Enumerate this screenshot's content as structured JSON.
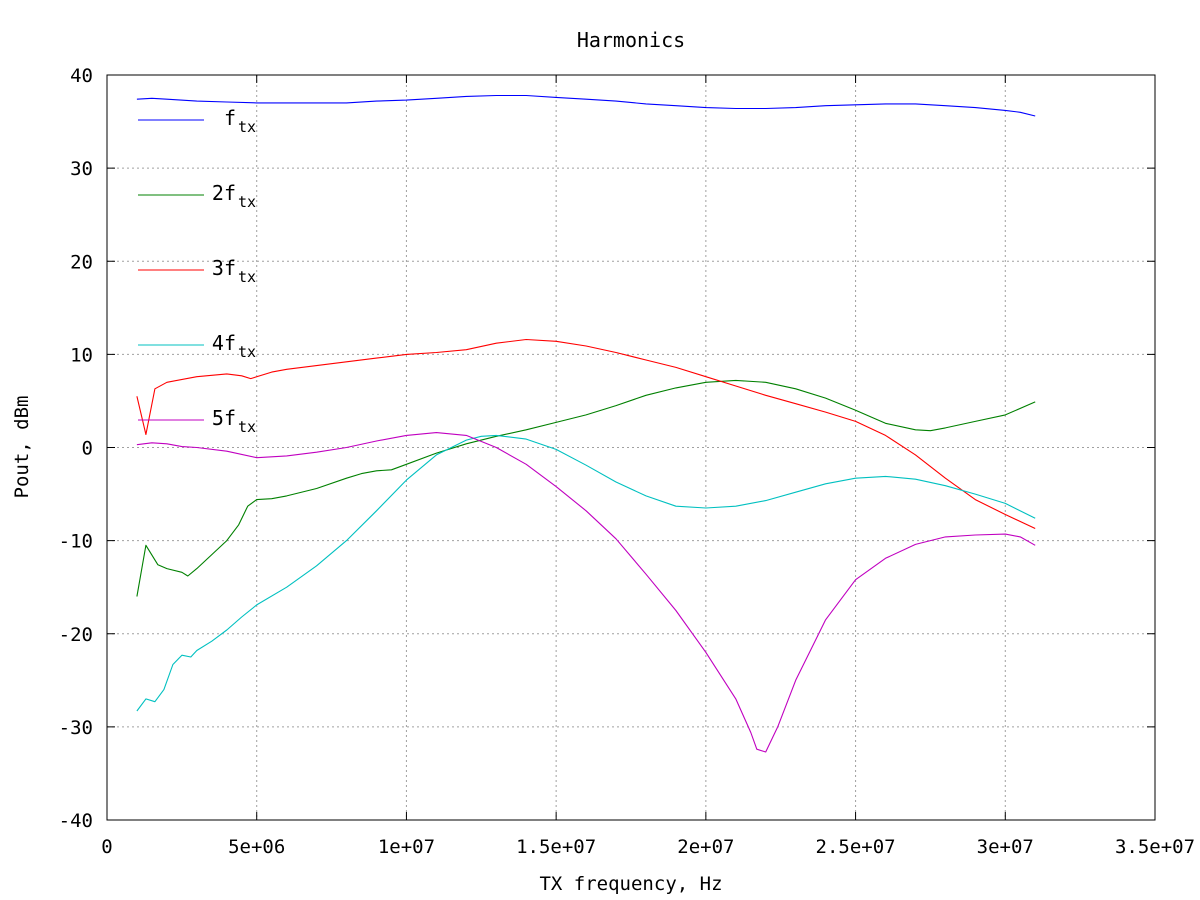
{
  "chart_data": {
    "type": "line",
    "title": "Harmonics",
    "xlabel": "TX frequency, Hz",
    "ylabel": "Pout, dBm",
    "xlim": [
      0,
      35000000
    ],
    "ylim": [
      -40,
      40
    ],
    "grid": true,
    "legend_position": "left",
    "x_ticks": [
      {
        "value": 0,
        "label": "0"
      },
      {
        "value": 5000000,
        "label": "5e+06"
      },
      {
        "value": 10000000,
        "label": "1e+07"
      },
      {
        "value": 15000000,
        "label": "1.5e+07"
      },
      {
        "value": 20000000,
        "label": "2e+07"
      },
      {
        "value": 25000000,
        "label": "2.5e+07"
      },
      {
        "value": 30000000,
        "label": "3e+07"
      },
      {
        "value": 35000000,
        "label": "3.5e+07"
      }
    ],
    "y_ticks": [
      {
        "value": -40,
        "label": "-40"
      },
      {
        "value": -30,
        "label": "-30"
      },
      {
        "value": -20,
        "label": "-20"
      },
      {
        "value": -10,
        "label": "-10"
      },
      {
        "value": 0,
        "label": "0"
      },
      {
        "value": 10,
        "label": "10"
      },
      {
        "value": 20,
        "label": "20"
      },
      {
        "value": 30,
        "label": "30"
      },
      {
        "value": 40,
        "label": "40"
      }
    ],
    "series": [
      {
        "legend_prefix": "",
        "legend_main": "f",
        "legend_sub": "tx",
        "color": "#0000ff",
        "points": [
          [
            1000000,
            37.4
          ],
          [
            1500000,
            37.5
          ],
          [
            2000000,
            37.4
          ],
          [
            3000000,
            37.2
          ],
          [
            4000000,
            37.1
          ],
          [
            5000000,
            37.0
          ],
          [
            6000000,
            37.0
          ],
          [
            7000000,
            37.0
          ],
          [
            8000000,
            37.0
          ],
          [
            9000000,
            37.2
          ],
          [
            10000000,
            37.3
          ],
          [
            11000000,
            37.5
          ],
          [
            12000000,
            37.7
          ],
          [
            13000000,
            37.8
          ],
          [
            14000000,
            37.8
          ],
          [
            15000000,
            37.6
          ],
          [
            16000000,
            37.4
          ],
          [
            17000000,
            37.2
          ],
          [
            18000000,
            36.9
          ],
          [
            19000000,
            36.7
          ],
          [
            20000000,
            36.5
          ],
          [
            21000000,
            36.4
          ],
          [
            22000000,
            36.4
          ],
          [
            23000000,
            36.5
          ],
          [
            24000000,
            36.7
          ],
          [
            25000000,
            36.8
          ],
          [
            26000000,
            36.9
          ],
          [
            27000000,
            36.9
          ],
          [
            28000000,
            36.7
          ],
          [
            29000000,
            36.5
          ],
          [
            30000000,
            36.2
          ],
          [
            30500000,
            36.0
          ],
          [
            31000000,
            35.6
          ]
        ]
      },
      {
        "legend_prefix": "2",
        "legend_main": "f",
        "legend_sub": "tx",
        "color": "#008000",
        "points": [
          [
            1000000,
            -16.0
          ],
          [
            1300000,
            -10.5
          ],
          [
            1700000,
            -12.6
          ],
          [
            2000000,
            -13.0
          ],
          [
            2500000,
            -13.4
          ],
          [
            2700000,
            -13.8
          ],
          [
            3000000,
            -13.0
          ],
          [
            3500000,
            -11.5
          ],
          [
            4000000,
            -10.0
          ],
          [
            4400000,
            -8.3
          ],
          [
            4700000,
            -6.3
          ],
          [
            5000000,
            -5.6
          ],
          [
            5500000,
            -5.5
          ],
          [
            6000000,
            -5.2
          ],
          [
            7000000,
            -4.4
          ],
          [
            8000000,
            -3.3
          ],
          [
            8500000,
            -2.8
          ],
          [
            9000000,
            -2.5
          ],
          [
            9500000,
            -2.4
          ],
          [
            10000000,
            -1.8
          ],
          [
            11000000,
            -0.6
          ],
          [
            12000000,
            0.4
          ],
          [
            13000000,
            1.2
          ],
          [
            14000000,
            1.9
          ],
          [
            15000000,
            2.7
          ],
          [
            16000000,
            3.5
          ],
          [
            17000000,
            4.5
          ],
          [
            18000000,
            5.6
          ],
          [
            19000000,
            6.4
          ],
          [
            20000000,
            7.0
          ],
          [
            21000000,
            7.2
          ],
          [
            22000000,
            7.0
          ],
          [
            23000000,
            6.3
          ],
          [
            24000000,
            5.3
          ],
          [
            25000000,
            4.0
          ],
          [
            25500000,
            3.3
          ],
          [
            26000000,
            2.6
          ],
          [
            27000000,
            1.9
          ],
          [
            27500000,
            1.8
          ],
          [
            28000000,
            2.1
          ],
          [
            29000000,
            2.8
          ],
          [
            30000000,
            3.5
          ],
          [
            31000000,
            4.9
          ]
        ]
      },
      {
        "legend_prefix": "3",
        "legend_main": "f",
        "legend_sub": "tx",
        "color": "#ff0000",
        "points": [
          [
            1000000,
            5.5
          ],
          [
            1300000,
            1.4
          ],
          [
            1600000,
            6.3
          ],
          [
            2000000,
            7.0
          ],
          [
            3000000,
            7.6
          ],
          [
            4000000,
            7.9
          ],
          [
            4500000,
            7.7
          ],
          [
            4800000,
            7.4
          ],
          [
            5500000,
            8.1
          ],
          [
            6000000,
            8.4
          ],
          [
            7000000,
            8.8
          ],
          [
            8000000,
            9.2
          ],
          [
            9000000,
            9.6
          ],
          [
            10000000,
            10.0
          ],
          [
            11000000,
            10.2
          ],
          [
            12000000,
            10.5
          ],
          [
            13000000,
            11.2
          ],
          [
            14000000,
            11.6
          ],
          [
            15000000,
            11.4
          ],
          [
            16000000,
            10.9
          ],
          [
            17000000,
            10.2
          ],
          [
            18000000,
            9.4
          ],
          [
            19000000,
            8.6
          ],
          [
            20000000,
            7.6
          ],
          [
            21000000,
            6.6
          ],
          [
            22000000,
            5.6
          ],
          [
            23000000,
            4.7
          ],
          [
            24000000,
            3.8
          ],
          [
            25000000,
            2.8
          ],
          [
            26000000,
            1.3
          ],
          [
            27000000,
            -0.8
          ],
          [
            28000000,
            -3.3
          ],
          [
            29000000,
            -5.6
          ],
          [
            30000000,
            -7.2
          ],
          [
            31000000,
            -8.7
          ]
        ]
      },
      {
        "legend_prefix": "4",
        "legend_main": "f",
        "legend_sub": "tx",
        "color": "#00c0c0",
        "points": [
          [
            1000000,
            -28.3
          ],
          [
            1300000,
            -27.0
          ],
          [
            1600000,
            -27.3
          ],
          [
            1900000,
            -26.0
          ],
          [
            2200000,
            -23.3
          ],
          [
            2500000,
            -22.3
          ],
          [
            2800000,
            -22.5
          ],
          [
            3000000,
            -21.8
          ],
          [
            3500000,
            -20.8
          ],
          [
            4000000,
            -19.6
          ],
          [
            4500000,
            -18.2
          ],
          [
            5000000,
            -16.9
          ],
          [
            6000000,
            -15.0
          ],
          [
            7000000,
            -12.7
          ],
          [
            8000000,
            -10.0
          ],
          [
            9000000,
            -6.8
          ],
          [
            10000000,
            -3.5
          ],
          [
            11000000,
            -0.8
          ],
          [
            12000000,
            0.8
          ],
          [
            12500000,
            1.2
          ],
          [
            13000000,
            1.3
          ],
          [
            14000000,
            0.9
          ],
          [
            15000000,
            -0.2
          ],
          [
            16000000,
            -1.9
          ],
          [
            17000000,
            -3.7
          ],
          [
            18000000,
            -5.2
          ],
          [
            19000000,
            -6.3
          ],
          [
            20000000,
            -6.5
          ],
          [
            21000000,
            -6.3
          ],
          [
            22000000,
            -5.7
          ],
          [
            23000000,
            -4.8
          ],
          [
            24000000,
            -3.9
          ],
          [
            25000000,
            -3.3
          ],
          [
            26000000,
            -3.1
          ],
          [
            27000000,
            -3.4
          ],
          [
            28000000,
            -4.1
          ],
          [
            29000000,
            -5.0
          ],
          [
            30000000,
            -6.0
          ],
          [
            31000000,
            -7.6
          ]
        ]
      },
      {
        "legend_prefix": "5",
        "legend_main": "f",
        "legend_sub": "tx",
        "color": "#c000c0",
        "points": [
          [
            1000000,
            0.3
          ],
          [
            1500000,
            0.5
          ],
          [
            2000000,
            0.4
          ],
          [
            2500000,
            0.1
          ],
          [
            3000000,
            0.0
          ],
          [
            4000000,
            -0.4
          ],
          [
            5000000,
            -1.1
          ],
          [
            6000000,
            -0.9
          ],
          [
            7000000,
            -0.5
          ],
          [
            8000000,
            0.0
          ],
          [
            9000000,
            0.7
          ],
          [
            10000000,
            1.3
          ],
          [
            11000000,
            1.6
          ],
          [
            12000000,
            1.3
          ],
          [
            13000000,
            0.0
          ],
          [
            14000000,
            -1.8
          ],
          [
            15000000,
            -4.2
          ],
          [
            16000000,
            -6.8
          ],
          [
            17000000,
            -9.8
          ],
          [
            18000000,
            -13.6
          ],
          [
            19000000,
            -17.5
          ],
          [
            20000000,
            -22.0
          ],
          [
            21000000,
            -27.0
          ],
          [
            21500000,
            -30.6
          ],
          [
            21700000,
            -32.4
          ],
          [
            22000000,
            -32.7
          ],
          [
            22400000,
            -30.0
          ],
          [
            23000000,
            -25.0
          ],
          [
            24000000,
            -18.5
          ],
          [
            25000000,
            -14.2
          ],
          [
            26000000,
            -11.9
          ],
          [
            27000000,
            -10.4
          ],
          [
            28000000,
            -9.6
          ],
          [
            29000000,
            -9.4
          ],
          [
            30000000,
            -9.3
          ],
          [
            30500000,
            -9.6
          ],
          [
            31000000,
            -10.5
          ]
        ]
      }
    ]
  }
}
